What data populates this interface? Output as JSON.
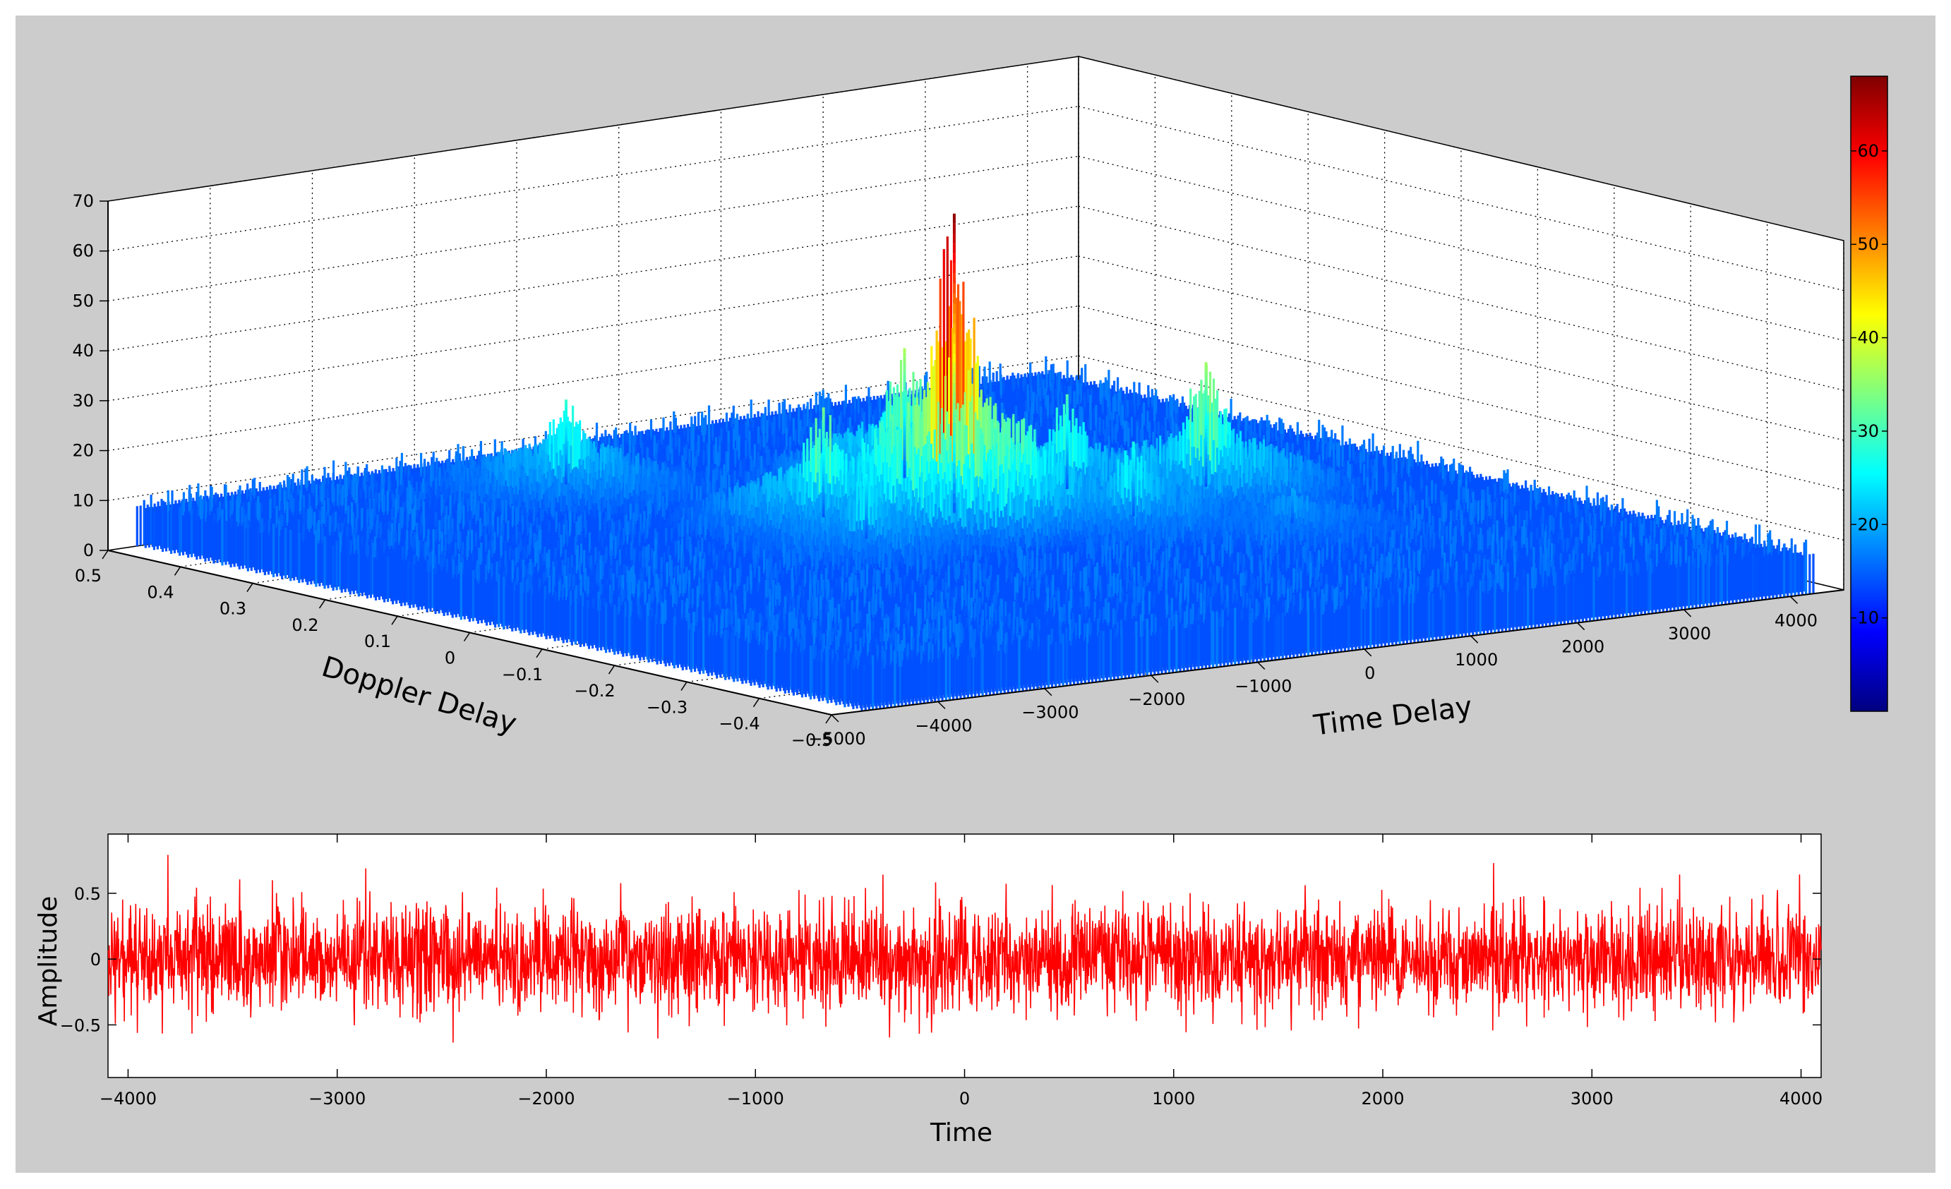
{
  "chart_data": [
    {
      "type": "surface3d",
      "title": "",
      "xlabel": "Time Delay",
      "ylabel": "Doppler Delay",
      "zlabel": "",
      "x_ticks": [
        -5000,
        -4000,
        -3000,
        -2000,
        -1000,
        0,
        1000,
        2000,
        3000,
        4000
      ],
      "y_ticks": [
        -0.5,
        -0.4,
        -0.3,
        -0.2,
        -0.1,
        0,
        0.1,
        0.2,
        0.3,
        0.4,
        0.5
      ],
      "z_ticks": [
        0,
        10,
        20,
        30,
        40,
        50,
        60,
        70
      ],
      "x_tick_labels": [
        "−5000",
        "−4000",
        "−3000",
        "−2000",
        "−1000",
        "0",
        "1000",
        "2000",
        "3000",
        "4000"
      ],
      "y_tick_labels": [
        "−0.5",
        "−0.4",
        "−0.3",
        "−0.2",
        "−0.1",
        "0",
        "0.1",
        "0.2",
        "0.3",
        "0.4",
        "0.5"
      ],
      "z_tick_labels": [
        "0",
        "10",
        "20",
        "30",
        "40",
        "50",
        "60",
        "70"
      ],
      "xlim": [
        -5000,
        4500
      ],
      "ylim": [
        -0.5,
        0.5
      ],
      "zlim": [
        0,
        70
      ],
      "grid": true,
      "noise_floor": 8,
      "peaks": [
        {
          "x": 0,
          "y": 0.05,
          "z": 68
        },
        {
          "x": 600,
          "y": 0.2,
          "z": 34
        },
        {
          "x": 2200,
          "y": 0.02,
          "z": 33
        },
        {
          "x": -900,
          "y": 0.1,
          "z": 30
        },
        {
          "x": 1300,
          "y": 0.08,
          "z": 27
        },
        {
          "x": -1600,
          "y": 0.35,
          "z": 25
        },
        {
          "x": 1000,
          "y": -0.05,
          "z": 23
        },
        {
          "x": -1200,
          "y": 0.0,
          "z": 21
        },
        {
          "x": 1800,
          "y": -0.15,
          "z": 15
        }
      ],
      "colorbar": {
        "colormap": "jet",
        "min": 0,
        "max": 68,
        "ticks": [
          10,
          20,
          30,
          40,
          50,
          60
        ],
        "tick_labels": [
          "10",
          "20",
          "30",
          "40",
          "50",
          "60"
        ]
      }
    },
    {
      "type": "line",
      "title": "",
      "xlabel": "Time",
      "ylabel": "Amplitude",
      "xlim": [
        -4096,
        4096
      ],
      "ylim": [
        -0.9,
        0.95
      ],
      "x_ticks": [
        -4000,
        -3000,
        -2000,
        -1000,
        0,
        1000,
        2000,
        3000,
        4000
      ],
      "x_tick_labels": [
        "−4000",
        "−3000",
        "−2000",
        "−1000",
        "0",
        "1000",
        "2000",
        "3000",
        "4000"
      ],
      "y_ticks": [
        -0.5,
        0,
        0.5
      ],
      "y_tick_labels": [
        "−0.5",
        "0",
        "0.5"
      ],
      "series_color": "#ff0000",
      "amplitude_std": 0.2,
      "amplitude_peak": 0.95
    }
  ],
  "colors": {
    "figure_background": "#cccccc",
    "axes_background": "#ffffff",
    "signal_line": "#ff0000"
  }
}
